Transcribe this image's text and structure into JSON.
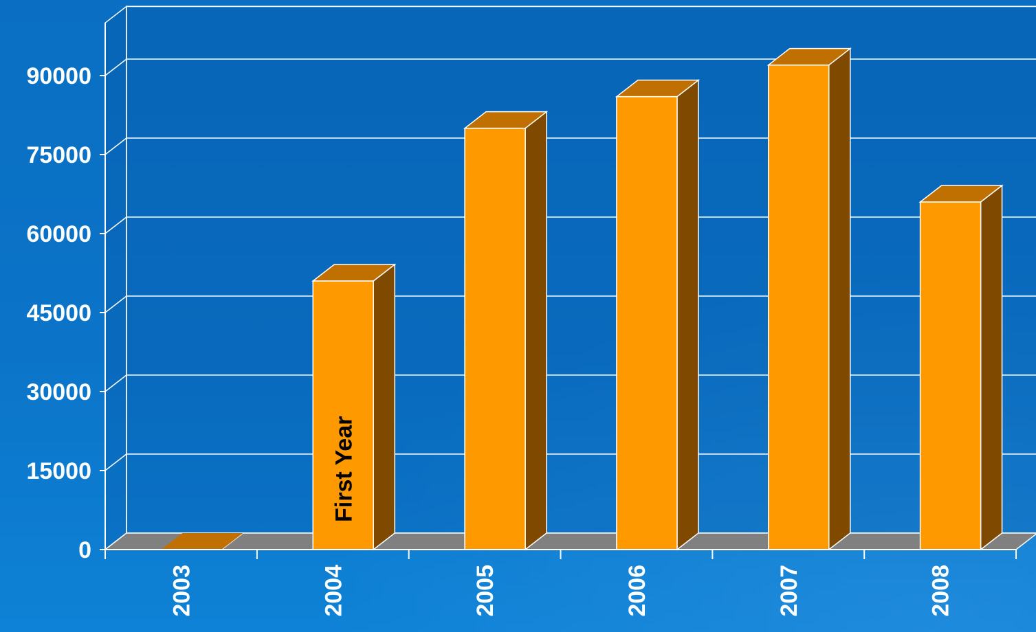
{
  "chart_data": {
    "type": "bar",
    "categories": [
      "2003",
      "2004",
      "2005",
      "2006",
      "2007",
      "2008"
    ],
    "values": [
      0,
      51000,
      80000,
      86000,
      92000,
      66000
    ],
    "title": "",
    "xlabel": "",
    "ylabel": "",
    "ylim": [
      0,
      100000
    ],
    "yticks": [
      0,
      15000,
      30000,
      45000,
      60000,
      75000,
      90000
    ],
    "grid": true,
    "legend": "none",
    "annotations": [
      {
        "category": "2004",
        "text": "First Year"
      }
    ],
    "colors": {
      "background": "#0a6cc0",
      "bar_front": "#ff9900",
      "bar_top": "#c07000",
      "bar_side": "#7f4a00",
      "floor": "#808080",
      "grid": "#ffffff",
      "text": "#ffffff"
    }
  }
}
